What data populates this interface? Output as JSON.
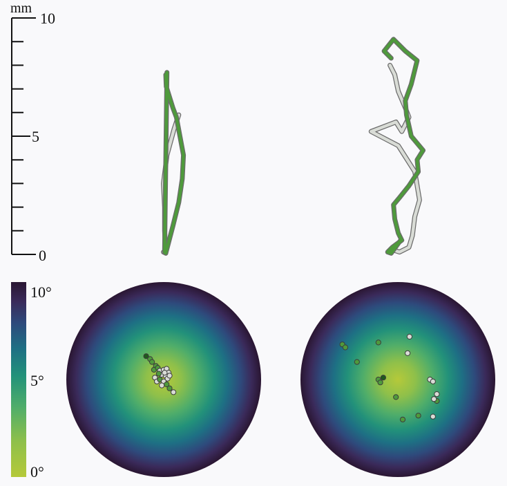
{
  "colors": {
    "background": "#f9f9fb",
    "axis": "#111111",
    "trace_green": "#4f9a3c",
    "trace_green_dark": "#1f5a1c",
    "trace_light": "#d9dcd6",
    "trace_outline": "#6b6b6b",
    "colormap": [
      "#b5c93a",
      "#8fc04a",
      "#4fad6a",
      "#22917a",
      "#1e6f84",
      "#2e4a7c",
      "#3a2a5a",
      "#2a1632"
    ]
  },
  "chart_data": [
    {
      "type": "line",
      "panel": "trajectory-left",
      "ylabel": "mm",
      "yticks": [
        "0",
        "5",
        "10"
      ],
      "ylim": [
        0,
        10
      ],
      "xlim": [
        -2,
        2
      ],
      "series": [
        {
          "color": "green",
          "x": [
            0.0,
            0.02,
            0.3,
            0.45,
            0.6,
            0.75,
            0.7,
            0.55,
            0.3,
            0.0,
            -0.05,
            0.05
          ],
          "y": [
            7.6,
            7.1,
            6.2,
            5.8,
            5.0,
            4.2,
            3.2,
            2.2,
            1.2,
            0.05,
            0.1,
            7.7
          ]
        },
        {
          "color": "light",
          "x": [
            0.55,
            0.35,
            0.05,
            -0.1,
            -0.05,
            -0.05,
            0.0,
            -0.1
          ],
          "y": [
            5.9,
            5.3,
            4.2,
            3.0,
            2.0,
            1.0,
            0.05,
            0.1
          ]
        }
      ]
    },
    {
      "type": "line",
      "panel": "trajectory-right",
      "ylim": [
        0,
        10
      ],
      "xlim": [
        -2,
        2
      ],
      "series": [
        {
          "color": "green",
          "x": [
            -0.4,
            -0.7,
            -0.3,
            0.2,
            0.7,
            0.45,
            0.2,
            0.25,
            0.45,
            0.95,
            0.7,
            0.75,
            0.35,
            -0.05,
            -0.3,
            -0.25,
            -0.1,
            0.05,
            -0.35,
            -0.55,
            -0.4,
            0.0
          ],
          "y": [
            8.3,
            8.6,
            9.1,
            8.6,
            8.2,
            7.2,
            6.5,
            5.9,
            5.0,
            4.4,
            4.0,
            3.5,
            2.9,
            2.4,
            2.1,
            1.5,
            0.9,
            0.6,
            0.3,
            0.1,
            0.05,
            0.6
          ]
        },
        {
          "color": "light",
          "x": [
            -0.45,
            -0.25,
            -0.1,
            0.2,
            0.35,
            0.05,
            -0.2,
            -1.25,
            -0.1,
            0.6,
            0.8,
            0.6,
            0.5,
            0.35,
            -0.05,
            -0.35
          ],
          "y": [
            8.0,
            7.6,
            6.9,
            6.2,
            5.8,
            5.2,
            5.6,
            5.2,
            4.6,
            3.5,
            2.3,
            1.6,
            0.8,
            0.3,
            0.1,
            0.2
          ]
        }
      ]
    },
    {
      "type": "scatter",
      "panel": "gaze-polar-left",
      "colorbar": {
        "ticks": [
          "0°",
          "5°",
          "10°"
        ],
        "range": [
          0,
          10
        ]
      },
      "rmax": 10,
      "points": [
        {
          "x": -1.8,
          "y": 2.4,
          "c": "dark"
        },
        {
          "x": -1.4,
          "y": 2.1,
          "c": "green"
        },
        {
          "x": -1.2,
          "y": 1.8,
          "c": "green"
        },
        {
          "x": -0.8,
          "y": 1.4,
          "c": "green"
        },
        {
          "x": -1.0,
          "y": 1.0,
          "c": "green"
        },
        {
          "x": -0.6,
          "y": 1.2,
          "c": "green"
        },
        {
          "x": -0.4,
          "y": 0.9,
          "c": "light"
        },
        {
          "x": 0.0,
          "y": 1.0,
          "c": "light"
        },
        {
          "x": 0.3,
          "y": 1.1,
          "c": "light"
        },
        {
          "x": 0.5,
          "y": 0.7,
          "c": "light"
        },
        {
          "x": -0.2,
          "y": 0.5,
          "c": "light"
        },
        {
          "x": 0.2,
          "y": 0.4,
          "c": "light"
        },
        {
          "x": -0.9,
          "y": 0.2,
          "c": "light"
        },
        {
          "x": -0.7,
          "y": -0.2,
          "c": "light"
        },
        {
          "x": -0.4,
          "y": 0.0,
          "c": "green"
        },
        {
          "x": 0.0,
          "y": -0.2,
          "c": "light"
        },
        {
          "x": 0.4,
          "y": 0.1,
          "c": "light"
        },
        {
          "x": 0.6,
          "y": 0.4,
          "c": "light"
        },
        {
          "x": -0.2,
          "y": -0.6,
          "c": "light"
        },
        {
          "x": 0.3,
          "y": -0.5,
          "c": "green"
        },
        {
          "x": 0.6,
          "y": -0.9,
          "c": "green"
        },
        {
          "x": 1.0,
          "y": -1.3,
          "c": "light"
        },
        {
          "x": -0.5,
          "y": 0.6,
          "c": "green"
        },
        {
          "x": 0.1,
          "y": 0.7,
          "c": "light"
        }
      ]
    },
    {
      "type": "scatter",
      "panel": "gaze-polar-right",
      "rmax": 10,
      "points": [
        {
          "x": -5.7,
          "y": 3.6,
          "c": "green"
        },
        {
          "x": -5.4,
          "y": 3.3,
          "c": "green"
        },
        {
          "x": -2.0,
          "y": 3.8,
          "c": "green"
        },
        {
          "x": 1.2,
          "y": 4.4,
          "c": "light"
        },
        {
          "x": 1.0,
          "y": 2.7,
          "c": "light"
        },
        {
          "x": -4.2,
          "y": 1.8,
          "c": "green"
        },
        {
          "x": -2.0,
          "y": 0.0,
          "c": "green"
        },
        {
          "x": -1.5,
          "y": 0.2,
          "c": "dark"
        },
        {
          "x": -1.8,
          "y": -0.3,
          "c": "green"
        },
        {
          "x": -0.2,
          "y": -1.8,
          "c": "green"
        },
        {
          "x": 3.3,
          "y": 0.0,
          "c": "light"
        },
        {
          "x": 3.6,
          "y": -0.2,
          "c": "light"
        },
        {
          "x": 4.0,
          "y": -1.5,
          "c": "light"
        },
        {
          "x": 4.0,
          "y": -2.2,
          "c": "green"
        },
        {
          "x": 3.7,
          "y": -2.0,
          "c": "light"
        },
        {
          "x": 2.1,
          "y": -3.7,
          "c": "green"
        },
        {
          "x": 0.5,
          "y": -4.1,
          "c": "green"
        },
        {
          "x": 3.6,
          "y": -3.8,
          "c": "light"
        }
      ]
    }
  ]
}
